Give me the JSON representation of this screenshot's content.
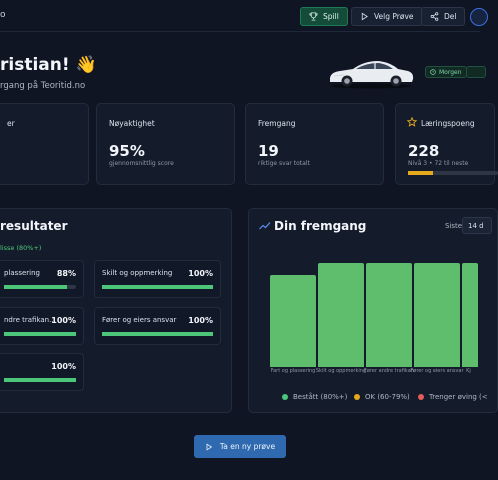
{
  "topbar": {
    "logo_fragment": "o",
    "play_label": "Spill",
    "choose_test_label": "Velg Prøve",
    "share_label": "Del"
  },
  "welcome": {
    "greeting": "ristian! 👋",
    "subtitle": "rgang på Teoritid.no",
    "chip": "Morgen"
  },
  "stats": {
    "first": {
      "label": "er"
    },
    "accuracy": {
      "label": "Nøyaktighet",
      "value": "95%",
      "sub": "gjennomsnittlig score"
    },
    "progress": {
      "label": "Fremgang",
      "value": "19",
      "sub": "riktige svar totalt"
    },
    "points": {
      "label": "Læringspoeng",
      "value": "228",
      "sub": "Nivå 3 • 72 til neste",
      "level_fraction": 0.28
    }
  },
  "results": {
    "title": "resultater",
    "pass_legend": "lisse (80%+)",
    "items": [
      {
        "name": "plassering",
        "pct": "88%",
        "fill": 0.88
      },
      {
        "name": "Skilt og oppmerking",
        "pct": "100%",
        "fill": 1.0
      },
      {
        "name": "ndre trafikan...",
        "pct": "100%",
        "fill": 1.0
      },
      {
        "name": "Fører og eiers ansvar",
        "pct": "100%",
        "fill": 1.0
      },
      {
        "name": "",
        "pct": "100%",
        "fill": 1.0
      }
    ]
  },
  "progress_chart": {
    "title": "Din fremgang",
    "period_label": "Siste",
    "period_value": "14 d",
    "legend": [
      {
        "label": "Bestått (80%+)",
        "color": "#4cc77a"
      },
      {
        "label": "OK (60-79%)",
        "color": "#e6a91e"
      },
      {
        "label": "Trenger øving (<",
        "color": "#e35d5d"
      }
    ]
  },
  "chart_data": {
    "type": "bar",
    "title": "Din fremgang",
    "categories": [
      "Fart og plassering",
      "Skilt og oppmerking",
      "Fører andre trafikan",
      "Fører og eiers ansvar",
      "Kj"
    ],
    "values": [
      88,
      100,
      100,
      100,
      100
    ],
    "ylim": [
      0,
      100
    ],
    "bar_color": "#5fbd6e",
    "grid": false
  },
  "cta": {
    "label": "Ta en ny prøve"
  }
}
